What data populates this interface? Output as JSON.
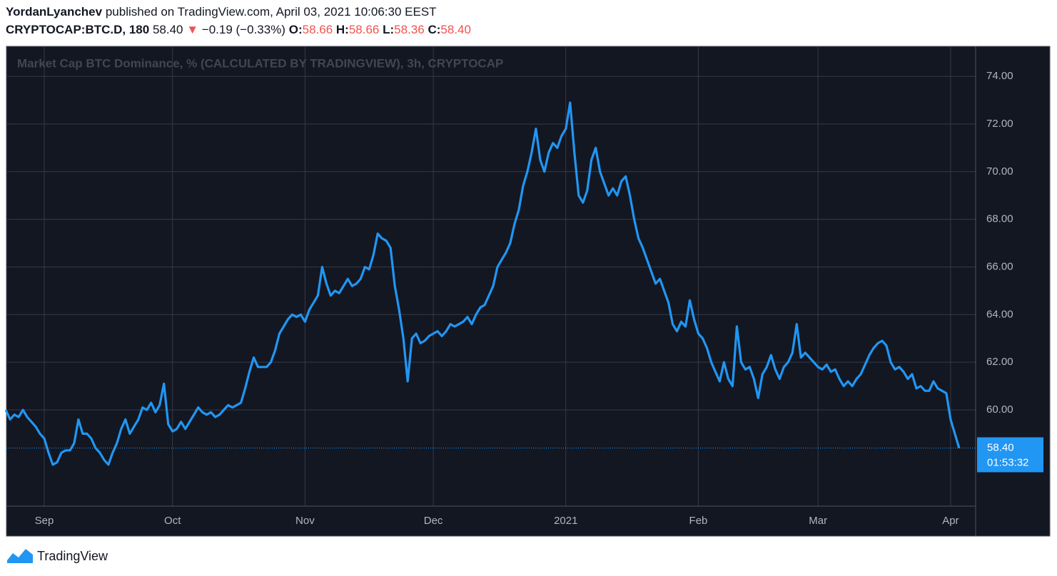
{
  "header": {
    "author": "YordanLyanchev",
    "published": " published on TradingView.com, April 03, 2021 10:06:30 EEST",
    "symbol": "CRYPTOCAP:BTC.D, 180",
    "last": "58.40",
    "change_arrow": "▼",
    "change": "−0.19 (−0.33%)",
    "open_label": "O:",
    "open": "58.66",
    "high_label": "H:",
    "high": "58.66",
    "low_label": "L:",
    "low": "58.36",
    "close_label": "C:",
    "close": "58.40"
  },
  "chart_data": {
    "type": "line",
    "title": "Market Cap BTC Dominance, % (CALCULATED BY TRADINGVIEW), 3h, CRYPTOCAP",
    "categories": [
      null,
      null,
      null,
      null,
      null,
      null,
      null,
      null,
      null,
      "Sep",
      null,
      null,
      null,
      null,
      null,
      null,
      null,
      null,
      null,
      null,
      null,
      null,
      null,
      null,
      null,
      null,
      null,
      null,
      null,
      null,
      null,
      null,
      null,
      null,
      null,
      null,
      null,
      null,
      null,
      "Oct",
      null,
      null,
      null,
      null,
      null,
      null,
      null,
      null,
      null,
      null,
      null,
      null,
      null,
      null,
      null,
      null,
      null,
      null,
      null,
      null,
      null,
      null,
      null,
      null,
      null,
      null,
      null,
      null,
      null,
      null,
      "Nov",
      null,
      null,
      null,
      null,
      null,
      null,
      null,
      null,
      null,
      null,
      null,
      null,
      null,
      null,
      null,
      null,
      null,
      null,
      null,
      null,
      null,
      null,
      null,
      null,
      null,
      null,
      null,
      null,
      null,
      "Dec",
      null,
      null,
      null,
      null,
      null,
      null,
      null,
      null,
      null,
      null,
      null,
      null,
      null,
      null,
      null,
      null,
      null,
      null,
      null,
      null,
      null,
      null,
      null,
      null,
      null,
      null,
      null,
      null,
      null,
      null,
      "2021",
      null,
      null,
      null,
      null,
      null,
      null,
      null,
      null,
      null,
      null,
      null,
      null,
      null,
      null,
      null,
      null,
      null,
      null,
      null,
      null,
      null,
      null,
      null,
      null,
      null,
      null,
      null,
      null,
      null,
      null,
      "Feb",
      null,
      null,
      null,
      null,
      null,
      null,
      null,
      null,
      null,
      null,
      null,
      null,
      null,
      null,
      null,
      null,
      null,
      null,
      null,
      null,
      null,
      null,
      null,
      null,
      null,
      null,
      null,
      "Mar",
      null,
      null,
      null,
      null,
      null,
      null,
      null,
      null,
      null,
      null,
      null,
      null,
      null,
      null,
      null,
      null,
      null,
      null,
      null,
      null,
      null,
      null,
      null,
      null,
      null,
      null,
      null,
      null,
      null,
      null,
      "Apr",
      null,
      null
    ],
    "series": [
      {
        "name": "CRYPTOCAP:BTC.D",
        "color": "#2196f3",
        "values": [
          60.0,
          59.6,
          59.8,
          59.7,
          60.0,
          59.7,
          59.5,
          59.3,
          59.0,
          58.8,
          58.2,
          57.7,
          57.8,
          58.2,
          58.3,
          58.3,
          58.6,
          59.6,
          59.0,
          59.0,
          58.8,
          58.4,
          58.2,
          57.9,
          57.7,
          58.2,
          58.6,
          59.2,
          59.6,
          59.0,
          59.3,
          59.6,
          60.1,
          60.0,
          60.3,
          59.9,
          60.2,
          61.1,
          59.4,
          59.1,
          59.2,
          59.5,
          59.2,
          59.5,
          59.8,
          60.1,
          59.9,
          59.8,
          59.9,
          59.7,
          59.8,
          60.0,
          60.2,
          60.1,
          60.2,
          60.3,
          60.9,
          61.6,
          62.2,
          61.8,
          61.8,
          61.8,
          62.0,
          62.5,
          63.2,
          63.5,
          63.8,
          64.0,
          63.9,
          64.0,
          63.7,
          64.2,
          64.5,
          64.8,
          66.0,
          65.3,
          64.8,
          65.0,
          64.9,
          65.2,
          65.5,
          65.2,
          65.3,
          65.5,
          66.0,
          65.9,
          66.5,
          67.4,
          67.2,
          67.1,
          66.8,
          65.2,
          64.2,
          63.0,
          61.2,
          63.0,
          63.2,
          62.8,
          62.9,
          63.1,
          63.2,
          63.3,
          63.1,
          63.3,
          63.6,
          63.5,
          63.6,
          63.7,
          63.9,
          63.6,
          64.0,
          64.3,
          64.4,
          64.8,
          65.2,
          66.0,
          66.3,
          66.6,
          67.0,
          67.8,
          68.4,
          69.4,
          70.0,
          70.8,
          71.8,
          70.5,
          70.0,
          70.8,
          71.2,
          71.0,
          71.5,
          71.8,
          72.9,
          70.8,
          69.0,
          68.7,
          69.2,
          70.5,
          71.0,
          70.0,
          69.5,
          69.0,
          69.3,
          69.0,
          69.6,
          69.8,
          69.0,
          68.0,
          67.2,
          66.8,
          66.3,
          65.8,
          65.3,
          65.5,
          65.0,
          64.5,
          63.6,
          63.3,
          63.7,
          63.5,
          64.6,
          63.8,
          63.2,
          63.0,
          62.6,
          62.0,
          61.6,
          61.2,
          62.0,
          61.3,
          61.0,
          63.5,
          62.0,
          61.7,
          61.8,
          61.3,
          60.5,
          61.5,
          61.8,
          62.3,
          61.7,
          61.3,
          61.8,
          62.0,
          62.4,
          63.6,
          62.2,
          62.4,
          62.2,
          62.0,
          61.8,
          61.7,
          61.9,
          61.6,
          61.7,
          61.3,
          61.0,
          61.2,
          61.0,
          61.3,
          61.5,
          61.9,
          62.3,
          62.6,
          62.8,
          62.9,
          62.7,
          62.0,
          61.7,
          61.8,
          61.6,
          61.3,
          61.5,
          60.9,
          61.0,
          60.8,
          60.8,
          61.2,
          60.9,
          60.8,
          60.7,
          59.6,
          59.0,
          58.4
        ]
      }
    ],
    "ylim": [
      55.96,
      75.23
    ],
    "yticks": [
      {
        "value": 60,
        "label": "60.00"
      },
      {
        "value": 62,
        "label": "62.00"
      },
      {
        "value": 64,
        "label": "64.00"
      },
      {
        "value": 66,
        "label": "66.00"
      },
      {
        "value": 68,
        "label": "68.00"
      },
      {
        "value": 70,
        "label": "70.00"
      },
      {
        "value": 72,
        "label": "72.00"
      },
      {
        "value": 74,
        "label": "74.00"
      }
    ],
    "grid": true,
    "last_price_label": "58.40",
    "countdown": "01:53:32"
  },
  "footer": {
    "brand": "TradingView"
  }
}
